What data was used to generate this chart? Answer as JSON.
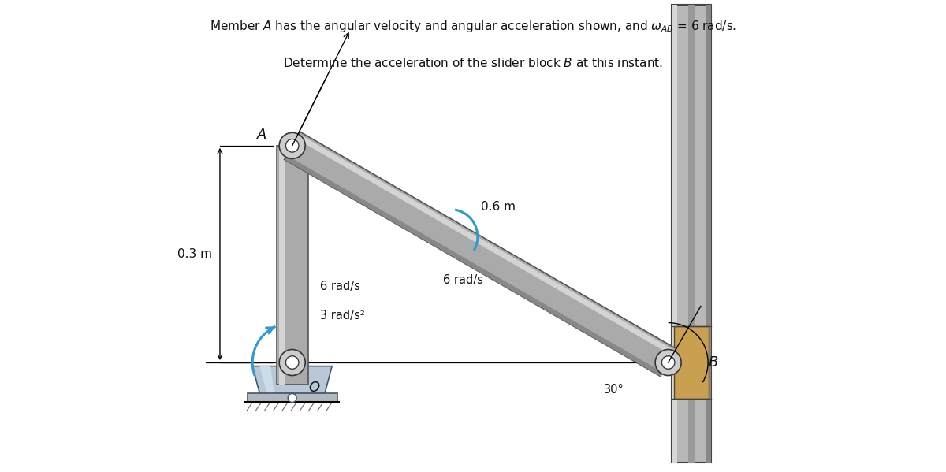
{
  "title_line1": "Member $A$ has the angular velocity and angular acceleration shown, and $\\omega_{AB}$ = 6 rad/s.",
  "title_line2": "Determine the acceleration of the slider block $B$ at this instant.",
  "bg_color": "#ffffff",
  "fig_width": 12.0,
  "fig_height": 5.99,
  "dpi": 100,
  "O_x": 3.0,
  "O_y": 1.5,
  "A_x": 3.0,
  "A_y": 4.5,
  "B_x": 8.2,
  "B_y": 1.5,
  "label_03m": "0.3 m",
  "label_06m": "0.6 m",
  "label_6rads_OA": "6 rad/s",
  "label_3rads2_OA": "3 rad/s²",
  "label_6rads_AB": "6 rad/s",
  "label_30deg": "30°",
  "label_A": "$A$",
  "label_O": "$O$",
  "label_B": "$B$",
  "bar_gray": "#aaaaaa",
  "bar_edge": "#555555",
  "bar_highlight": "#d4d4d4",
  "bar_shadow": "#888888",
  "pin_face": "#cccccc",
  "pin_edge": "#333333",
  "slider_gold": "#c8a050",
  "rail_gray": "#b8b8b8",
  "rail_light": "#d8d8d8",
  "rail_dark": "#888888",
  "pedestal_face": "#b8c8d8",
  "pedestal_edge": "#445566",
  "ground_face": "#aaaaaa",
  "arrow_blue": "#3399cc",
  "text_color": "#111111",
  "xlim": [
    0,
    11
  ],
  "ylim": [
    0,
    6.5
  ]
}
